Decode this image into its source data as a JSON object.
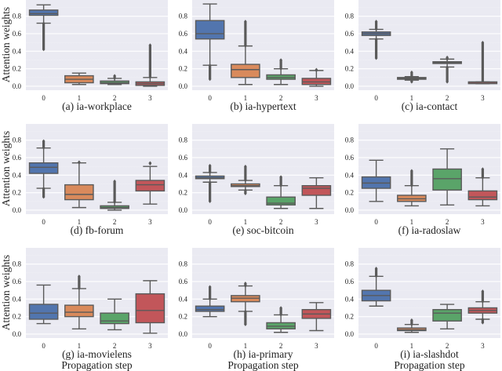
{
  "colors": {
    "step0": "#5275ae",
    "step1": "#d98a5c",
    "step2": "#5aa469",
    "step3": "#c2565a",
    "edge": "#5a5a5a",
    "background": "#eaeaf2",
    "grid": "#ffffff"
  },
  "chart_data": {
    "type": "box",
    "ylabel": "Attention weights",
    "xlabel": "Propagation step",
    "categories": [
      "0",
      "1",
      "2",
      "3"
    ],
    "yticks": [
      "0.0",
      "0.2",
      "0.4",
      "0.6",
      "0.8"
    ],
    "ytick_values": [
      0,
      0.2,
      0.4,
      0.6,
      0.8
    ],
    "ylim": [
      -0.045,
      0.985
    ],
    "grid": true,
    "panels": [
      {
        "title": "(a) ia-workplace",
        "boxes": [
          {
            "whislo": 0.72,
            "q1": 0.81,
            "med": 0.83,
            "q3": 0.87,
            "whishi": 0.93,
            "fliers": [
              [
                0.42,
                0.72
              ]
            ]
          },
          {
            "whislo": 0.02,
            "q1": 0.04,
            "med": 0.08,
            "q3": 0.12,
            "whishi": 0.15,
            "fliers": []
          },
          {
            "whislo": 0.02,
            "q1": 0.03,
            "med": 0.04,
            "q3": 0.06,
            "whishi": 0.09,
            "fliers": [
              [
                0.09,
                0.12
              ]
            ]
          },
          {
            "whislo": 0.0,
            "q1": 0.01,
            "med": 0.03,
            "q3": 0.05,
            "whishi": 0.1,
            "fliers": [
              [
                0.1,
                0.47
              ]
            ]
          }
        ]
      },
      {
        "title": "(b) ia-hypertext",
        "boxes": [
          {
            "whislo": 0.24,
            "q1": 0.54,
            "med": 0.6,
            "q3": 0.75,
            "whishi": 0.94,
            "fliers": [
              [
                0.08,
                0.24
              ]
            ]
          },
          {
            "whislo": 0.02,
            "q1": 0.1,
            "med": 0.19,
            "q3": 0.25,
            "whishi": 0.46,
            "fliers": [
              [
                0.46,
                0.74
              ]
            ]
          },
          {
            "whislo": 0.02,
            "q1": 0.08,
            "med": 0.1,
            "q3": 0.13,
            "whishi": 0.2,
            "fliers": [
              [
                0.2,
                0.3
              ]
            ]
          },
          {
            "whislo": 0.0,
            "q1": 0.02,
            "med": 0.05,
            "q3": 0.09,
            "whishi": 0.18,
            "fliers": [
              [
                0.18,
                0.19
              ]
            ]
          }
        ]
      },
      {
        "title": "(c) ia-contact",
        "boxes": [
          {
            "whislo": 0.54,
            "q1": 0.58,
            "med": 0.6,
            "q3": 0.62,
            "whishi": 0.65,
            "fliers": [
              [
                0.32,
                0.54
              ],
              [
                0.65,
                0.74
              ]
            ]
          },
          {
            "whislo": 0.07,
            "q1": 0.08,
            "med": 0.09,
            "q3": 0.1,
            "whishi": 0.11,
            "fliers": [
              [
                0.05,
                0.07
              ],
              [
                0.11,
                0.16
              ]
            ]
          },
          {
            "whislo": 0.22,
            "q1": 0.26,
            "med": 0.27,
            "q3": 0.28,
            "whishi": 0.31,
            "fliers": [
              [
                0.05,
                0.22
              ],
              [
                0.31,
                0.33
              ]
            ]
          },
          {
            "whislo": 0.03,
            "q1": 0.03,
            "med": 0.035,
            "q3": 0.05,
            "whishi": 0.05,
            "fliers": [
              [
                0.05,
                0.5
              ]
            ]
          }
        ]
      },
      {
        "title": "(d) fb-forum",
        "boxes": [
          {
            "whislo": 0.25,
            "q1": 0.42,
            "med": 0.49,
            "q3": 0.54,
            "whishi": 0.71,
            "fliers": [
              [
                0.15,
                0.25
              ],
              [
                0.71,
                0.79
              ]
            ]
          },
          {
            "whislo": 0.03,
            "q1": 0.12,
            "med": 0.18,
            "q3": 0.29,
            "whishi": 0.54,
            "fliers": [
              [
                0.54,
                0.55
              ]
            ]
          },
          {
            "whislo": 0.0,
            "q1": 0.02,
            "med": 0.03,
            "q3": 0.05,
            "whishi": 0.09,
            "fliers": [
              [
                0.09,
                0.33
              ]
            ]
          },
          {
            "whislo": 0.07,
            "q1": 0.22,
            "med": 0.29,
            "q3": 0.34,
            "whishi": 0.5,
            "fliers": [
              [
                0.53,
                0.54
              ]
            ]
          }
        ]
      },
      {
        "title": "(e) soc-bitcoin",
        "boxes": [
          {
            "whislo": 0.32,
            "q1": 0.36,
            "med": 0.37,
            "q3": 0.39,
            "whishi": 0.43,
            "fliers": [
              [
                0.1,
                0.32
              ],
              [
                0.43,
                0.51
              ]
            ]
          },
          {
            "whislo": 0.23,
            "q1": 0.27,
            "med": 0.28,
            "q3": 0.3,
            "whishi": 0.34,
            "fliers": [
              [
                0.19,
                0.23
              ],
              [
                0.34,
                0.5
              ]
            ]
          },
          {
            "whislo": 0.02,
            "q1": 0.06,
            "med": 0.08,
            "q3": 0.15,
            "whishi": 0.28,
            "fliers": [
              [
                0.28,
                0.38
              ]
            ]
          },
          {
            "whislo": 0.02,
            "q1": 0.17,
            "med": 0.25,
            "q3": 0.28,
            "whishi": 0.37,
            "fliers": []
          }
        ]
      },
      {
        "title": "(f) ia-radoslaw",
        "boxes": [
          {
            "whislo": 0.1,
            "q1": 0.25,
            "med": 0.31,
            "q3": 0.38,
            "whishi": 0.57,
            "fliers": []
          },
          {
            "whislo": 0.05,
            "q1": 0.1,
            "med": 0.13,
            "q3": 0.17,
            "whishi": 0.28,
            "fliers": [
              [
                0.28,
                0.45
              ]
            ]
          },
          {
            "whislo": 0.06,
            "q1": 0.23,
            "med": 0.36,
            "q3": 0.47,
            "whishi": 0.7,
            "fliers": []
          },
          {
            "whislo": 0.05,
            "q1": 0.12,
            "med": 0.15,
            "q3": 0.22,
            "whishi": 0.37,
            "fliers": [
              [
                0.37,
                0.47
              ]
            ]
          }
        ]
      },
      {
        "title": "(g) ia-movielens",
        "boxes": [
          {
            "whislo": 0.12,
            "q1": 0.17,
            "med": 0.24,
            "q3": 0.34,
            "whishi": 0.56,
            "fliers": []
          },
          {
            "whislo": 0.06,
            "q1": 0.2,
            "med": 0.25,
            "q3": 0.33,
            "whishi": 0.52,
            "fliers": [
              [
                0.52,
                0.66
              ]
            ]
          },
          {
            "whislo": 0.05,
            "q1": 0.12,
            "med": 0.15,
            "q3": 0.24,
            "whishi": 0.4,
            "fliers": []
          },
          {
            "whislo": 0.01,
            "q1": 0.13,
            "med": 0.27,
            "q3": 0.46,
            "whishi": 0.61,
            "fliers": []
          }
        ]
      },
      {
        "title": "(h) ia-primary",
        "boxes": [
          {
            "whislo": 0.2,
            "q1": 0.26,
            "med": 0.28,
            "q3": 0.32,
            "whishi": 0.4,
            "fliers": [
              [
                0.4,
                0.54
              ]
            ]
          },
          {
            "whislo": 0.26,
            "q1": 0.37,
            "med": 0.41,
            "q3": 0.44,
            "whishi": 0.55,
            "fliers": [
              [
                0.11,
                0.26
              ],
              [
                0.55,
                0.58
              ]
            ]
          },
          {
            "whislo": 0.02,
            "q1": 0.06,
            "med": 0.09,
            "q3": 0.13,
            "whishi": 0.22,
            "fliers": [
              [
                0.22,
                0.3
              ]
            ]
          },
          {
            "whislo": 0.04,
            "q1": 0.18,
            "med": 0.23,
            "q3": 0.28,
            "whishi": 0.36,
            "fliers": []
          }
        ]
      },
      {
        "title": "(i) ia-slashdot",
        "boxes": [
          {
            "whislo": 0.32,
            "q1": 0.38,
            "med": 0.44,
            "q3": 0.5,
            "whishi": 0.66,
            "fliers": [
              [
                0.66,
                0.75
              ]
            ]
          },
          {
            "whislo": 0.02,
            "q1": 0.04,
            "med": 0.05,
            "q3": 0.07,
            "whishi": 0.11,
            "fliers": [
              [
                0.11,
                0.16
              ]
            ]
          },
          {
            "whislo": 0.06,
            "q1": 0.15,
            "med": 0.24,
            "q3": 0.28,
            "whishi": 0.34,
            "fliers": []
          },
          {
            "whislo": 0.17,
            "q1": 0.24,
            "med": 0.27,
            "q3": 0.3,
            "whishi": 0.37,
            "fliers": [
              [
                0.13,
                0.17
              ],
              [
                0.37,
                0.49
              ]
            ]
          }
        ]
      }
    ]
  }
}
